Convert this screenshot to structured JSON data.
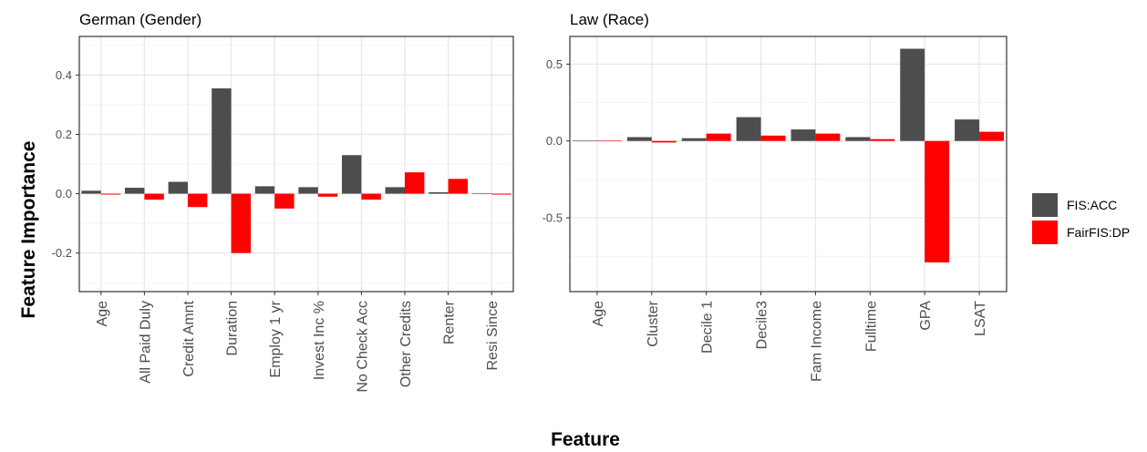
{
  "figure": {
    "ylabel": "Feature Importance",
    "xlabel": "Feature"
  },
  "legend": {
    "placement": "right",
    "items": [
      {
        "label": "FIS:ACC",
        "color": "#4d4d4d"
      },
      {
        "label": "FairFIS:DP",
        "color": "#ff0000"
      }
    ]
  },
  "chart_data": [
    {
      "type": "bar",
      "title": "German (Gender)",
      "categories": [
        "Age",
        "All Paid Duly",
        "Credit Amnt",
        "Duration",
        "Employ 1 yr",
        "Invest Inc %",
        "No Check Acc",
        "Other Credits",
        "Renter",
        "Resi Since"
      ],
      "series": [
        {
          "name": "FIS:ACC",
          "color": "#4d4d4d",
          "values": [
            0.01,
            0.02,
            0.04,
            0.355,
            0.025,
            0.022,
            0.13,
            0.022,
            0.005,
            0.002
          ]
        },
        {
          "name": "FairFIS:DP",
          "color": "#ff0000",
          "values": [
            -0.003,
            -0.02,
            -0.045,
            -0.2,
            -0.05,
            -0.01,
            -0.02,
            0.072,
            0.05,
            -0.003
          ]
        }
      ],
      "ylim": [
        -0.33,
        0.53
      ],
      "yticks": [
        -0.2,
        0.0,
        0.2,
        0.4
      ],
      "ytick_labels": [
        "-0.2",
        "0.0",
        "0.2",
        "0.4"
      ],
      "grid": true
    },
    {
      "type": "bar",
      "title": "Law (Race)",
      "categories": [
        "Age",
        "Cluster",
        "Decile 1",
        "Decile3",
        "Fam Income",
        "Fulltime",
        "GPA",
        "LSAT"
      ],
      "series": [
        {
          "name": "FIS:ACC",
          "color": "#4d4d4d",
          "values": [
            0.003,
            0.025,
            0.018,
            0.155,
            0.075,
            0.025,
            0.6,
            0.14
          ]
        },
        {
          "name": "FairFIS:DP",
          "color": "#ff0000",
          "values": [
            0.002,
            -0.01,
            0.048,
            0.035,
            0.048,
            0.012,
            -0.79,
            0.06
          ]
        }
      ],
      "ylim": [
        -0.98,
        0.68
      ],
      "yticks": [
        -0.5,
        0.0,
        0.5
      ],
      "ytick_labels": [
        "-0.5",
        "0.0",
        "0.5"
      ],
      "grid": true
    }
  ]
}
